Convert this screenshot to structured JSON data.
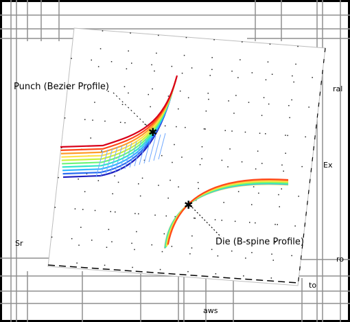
{
  "labels": {
    "punch": "Punch (Bezier Profile)",
    "die": "Die (B-spine Profile)"
  },
  "background_fragments": {
    "right_top": "ral",
    "right_mid": "Ex",
    "right_low": "ro",
    "left_side": "Sr",
    "bottom_right": "to",
    "bottom_center": "aws"
  },
  "colors": {
    "border": "#000000",
    "paper": "#ffffff",
    "grid_line": "#8f8f8f",
    "dot_grid": "#202020",
    "marker": "#000000"
  },
  "colormap": [
    "#1f1fbf",
    "#2a6cf0",
    "#35b6ff",
    "#2ee6c8",
    "#6cf57a",
    "#c8f23a",
    "#ffe04a",
    "#ff9c2a",
    "#ff4a1a",
    "#d8001a"
  ],
  "icons": {
    "punch_marker": "star-marker-icon",
    "die_marker": "star-marker-icon"
  }
}
